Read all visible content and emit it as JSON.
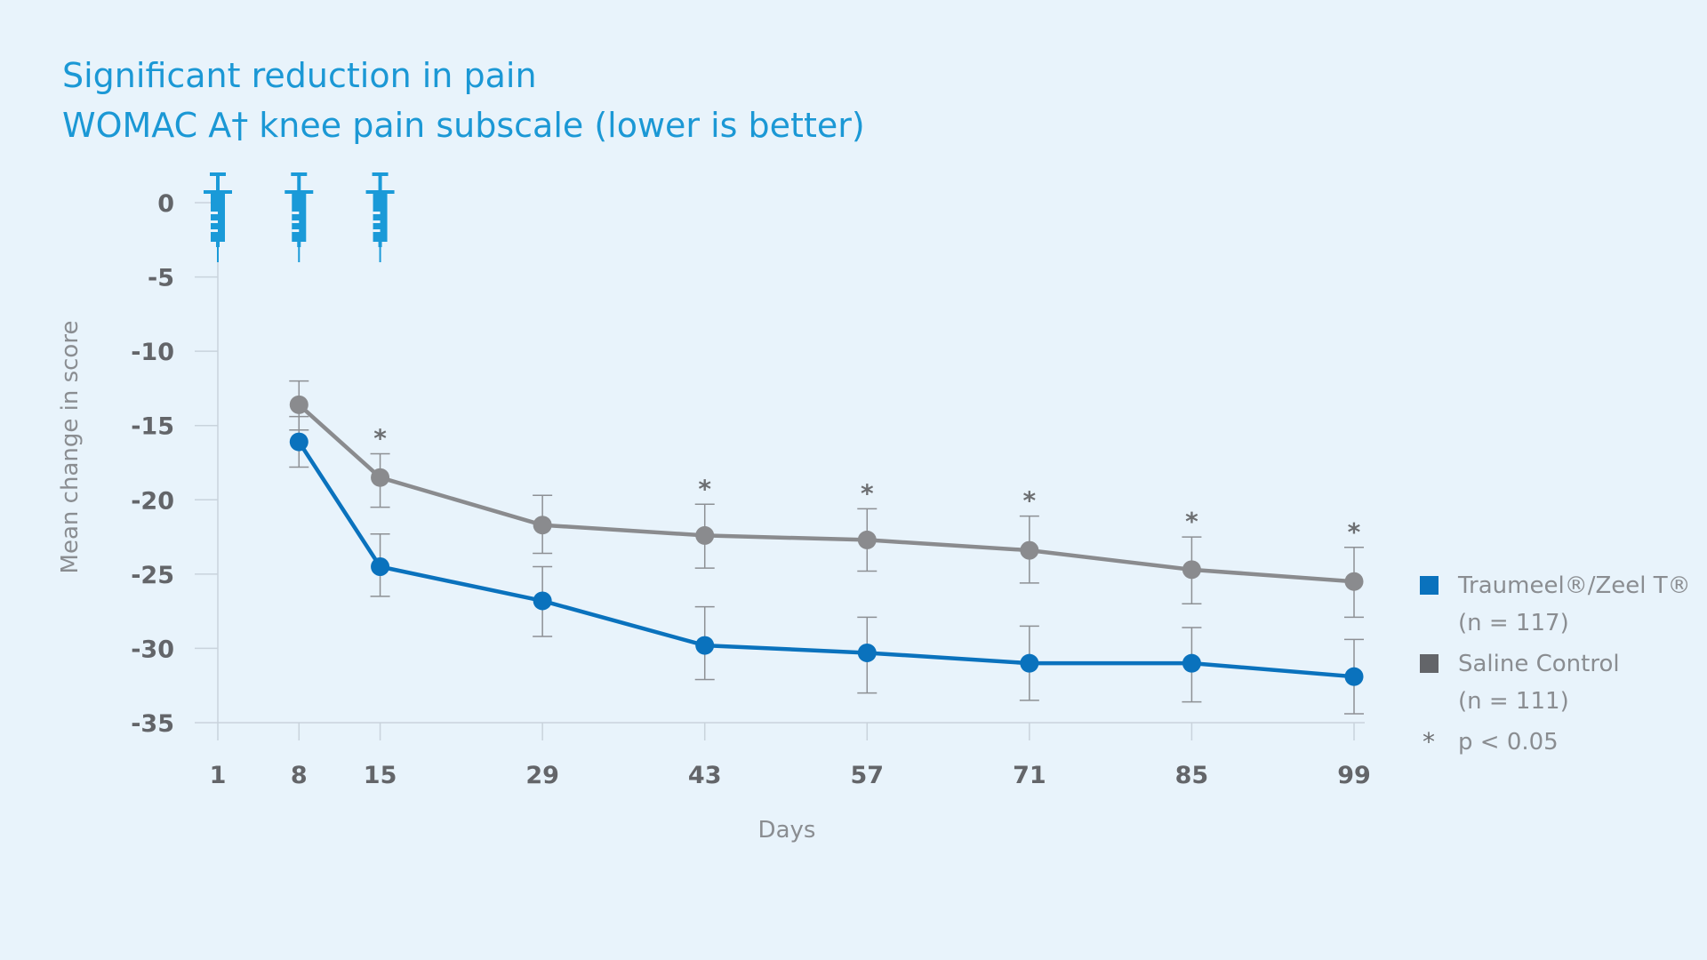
{
  "colors": {
    "background": "#e8f3fb",
    "title": "#1b98d5",
    "treatment": "#0a72bd",
    "control": "#8a8b8e",
    "syringe": "#1a9ad8",
    "axis": "#c9d3dc",
    "tick_text": "#636569",
    "label_text": "#8a8d91"
  },
  "chart_data": {
    "type": "line",
    "title": "Significant reduction in pain",
    "subtitle": "WOMAC A† knee pain subscale (lower is better)",
    "xlabel": "Days",
    "ylabel": "Mean change in score",
    "x_ticks": [
      1,
      8,
      15,
      29,
      43,
      57,
      71,
      85,
      99
    ],
    "y_ticks": [
      0,
      -5,
      -10,
      -15,
      -20,
      -25,
      -30,
      -35
    ],
    "x_range": [
      1,
      99
    ],
    "ylim": [
      -35,
      0
    ],
    "grid": false,
    "legend_position": "right",
    "injection_days": [
      1,
      8,
      15
    ],
    "injection_icon": "syringe-icon",
    "series": [
      {
        "name": "Traumeel®/Zeel T®",
        "name_line2": "(n = 117)",
        "color": "#0a72bd",
        "x": [
          8,
          15,
          29,
          43,
          57,
          71,
          85,
          99
        ],
        "y": [
          -16.1,
          -24.5,
          -26.8,
          -29.8,
          -30.3,
          -31.0,
          -31.0,
          -31.9
        ],
        "err_low": [
          -17.8,
          -26.5,
          -29.2,
          -32.1,
          -33.0,
          -33.5,
          -33.6,
          -34.4
        ],
        "err_high": [
          -14.4,
          -22.3,
          -24.5,
          -27.2,
          -27.9,
          -28.5,
          -28.6,
          -29.4
        ]
      },
      {
        "name": "Saline Control",
        "name_line2": "(n = 111)",
        "color": "#8a8b8e",
        "x": [
          8,
          15,
          29,
          43,
          57,
          71,
          85,
          99
        ],
        "y": [
          -13.6,
          -18.5,
          -21.7,
          -22.4,
          -22.7,
          -23.4,
          -24.7,
          -25.5
        ],
        "err_low": [
          -15.3,
          -20.5,
          -23.6,
          -24.6,
          -24.8,
          -25.6,
          -27.0,
          -27.9
        ],
        "err_high": [
          -12.0,
          -16.9,
          -19.7,
          -20.3,
          -20.6,
          -21.1,
          -22.5,
          -23.2
        ]
      }
    ],
    "significance": {
      "symbol": "*",
      "days": [
        15,
        43,
        57,
        71,
        85,
        99
      ],
      "label": "p < 0.05"
    }
  }
}
